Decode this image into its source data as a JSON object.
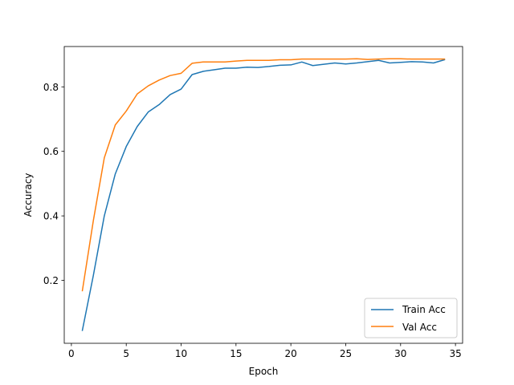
{
  "chart_data": {
    "type": "line",
    "title": "",
    "xlabel": "Epoch",
    "ylabel": "Accuracy",
    "xlim": [
      -0.65,
      35.65
    ],
    "ylim": [
      0.005,
      0.925
    ],
    "xticks": [
      0,
      5,
      10,
      15,
      20,
      25,
      30,
      35
    ],
    "yticks": [
      0.2,
      0.4,
      0.6,
      0.8
    ],
    "grid": false,
    "legend_position": "lower-right",
    "x": [
      1,
      2,
      3,
      4,
      5,
      6,
      7,
      8,
      9,
      10,
      11,
      12,
      13,
      14,
      15,
      16,
      17,
      18,
      19,
      20,
      21,
      22,
      23,
      24,
      25,
      26,
      27,
      28,
      29,
      30,
      31,
      32,
      33,
      34
    ],
    "series": [
      {
        "name": "Train Acc",
        "color": "#1f77b4",
        "values": [
          0.045,
          0.215,
          0.4,
          0.53,
          0.615,
          0.677,
          0.722,
          0.745,
          0.776,
          0.793,
          0.838,
          0.848,
          0.853,
          0.858,
          0.858,
          0.861,
          0.86,
          0.863,
          0.867,
          0.868,
          0.877,
          0.866,
          0.87,
          0.874,
          0.871,
          0.874,
          0.878,
          0.882,
          0.874,
          0.876,
          0.878,
          0.877,
          0.874,
          0.884
        ]
      },
      {
        "name": "Val Acc",
        "color": "#ff7f0e",
        "values": [
          0.168,
          0.385,
          0.58,
          0.682,
          0.725,
          0.778,
          0.803,
          0.821,
          0.835,
          0.842,
          0.873,
          0.877,
          0.877,
          0.877,
          0.88,
          0.882,
          0.882,
          0.882,
          0.884,
          0.884,
          0.886,
          0.886,
          0.886,
          0.886,
          0.886,
          0.887,
          0.885,
          0.886,
          0.887,
          0.887,
          0.886,
          0.886,
          0.886,
          0.886
        ]
      }
    ]
  }
}
